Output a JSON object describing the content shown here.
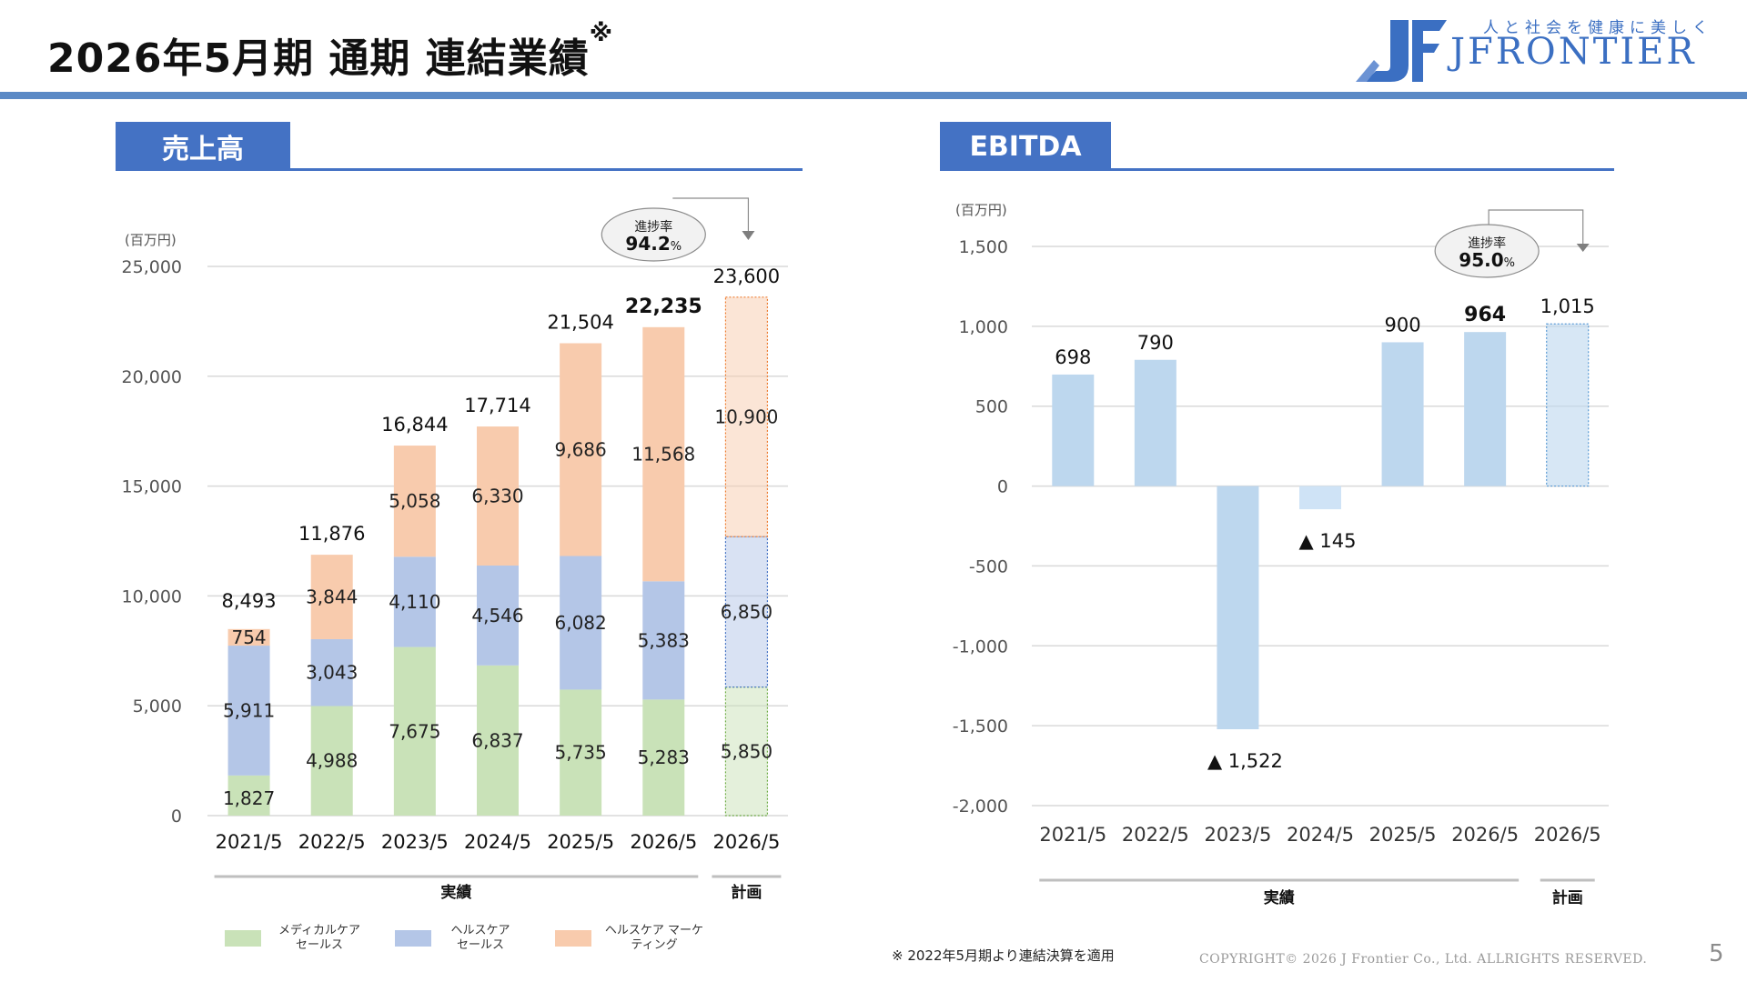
{
  "header": {
    "title": "2026年5月期 通期 連結業績",
    "title_mark": "※",
    "logo_tagline": "人と社会を健康に美しく",
    "logo_name": "JFRONTIER",
    "accent_color": "#4472c4"
  },
  "sales_section": {
    "tab_label": "売上高"
  },
  "ebitda_section": {
    "tab_label": "EBITDA"
  },
  "chart_data": [
    {
      "type": "bar",
      "stacked": true,
      "unit_label": "(百万円)",
      "categories": [
        "2021/5",
        "2022/5",
        "2023/5",
        "2024/5",
        "2025/5",
        "2026/5",
        "2026/5"
      ],
      "series": [
        {
          "name": "メディカルケア セールス",
          "values": [
            1827,
            4988,
            7675,
            6837,
            5735,
            5283,
            5850
          ],
          "color": "#c9e2b8"
        },
        {
          "name": "ヘルスケア セールス",
          "values": [
            5911,
            3043,
            4110,
            4546,
            6082,
            5383,
            6850
          ],
          "color": "#b4c6e7"
        },
        {
          "name": "ヘルスケア マーケティング",
          "values": [
            754,
            3844,
            5058,
            6330,
            9686,
            11568,
            10900
          ],
          "color": "#f8cbad"
        }
      ],
      "series_value_labels": [
        [
          "1,827",
          "4,988",
          "7,675",
          "6,837",
          "5,735",
          "5,283",
          "5,850"
        ],
        [
          "5,911",
          "3,043",
          "4,110",
          "4,546",
          "6,082",
          "5,383",
          "6,850"
        ],
        [
          "754",
          "3,844",
          "5,058",
          "6,330",
          "9,686",
          "11,568",
          "10,900"
        ]
      ],
      "totals": [
        8493,
        11876,
        16844,
        17714,
        21504,
        22235,
        23600
      ],
      "total_labels": [
        "8,493",
        "11,876",
        "16,844",
        "17,714",
        "21,504",
        "22,235",
        "23,600"
      ],
      "highlight_index": 5,
      "plan_index": 6,
      "ylim": [
        0,
        25000
      ],
      "yticks": [
        0,
        5000,
        10000,
        15000,
        20000,
        25000
      ],
      "ytick_labels": [
        "0",
        "5,000",
        "10,000",
        "15,000",
        "20,000",
        "25,000"
      ],
      "grid": true,
      "progress": {
        "label": "進捗率",
        "value": "94.2",
        "unit": "%"
      },
      "groups": [
        {
          "label": "実績"
        },
        {
          "label": "計画"
        }
      ],
      "legend_position": "bottom"
    },
    {
      "type": "bar",
      "unit_label": "(百万円)",
      "categories": [
        "2021/5",
        "2022/5",
        "2023/5",
        "2024/5",
        "2025/5",
        "2026/5",
        "2026/5"
      ],
      "values": [
        698,
        790,
        -1522,
        -145,
        900,
        964,
        1015
      ],
      "value_labels": [
        "698",
        "790",
        "▲ 1,522",
        "▲ 145",
        "900",
        "964",
        "1,015"
      ],
      "highlight_index": 5,
      "plan_index": 6,
      "ylim": [
        -2000,
        1500
      ],
      "yticks": [
        -2000,
        -1500,
        -1000,
        -500,
        0,
        500,
        1000,
        1500
      ],
      "ytick_labels": [
        "-2,000",
        "-1,500",
        "-1,000",
        "-500",
        "0",
        "500",
        "1,000",
        "1,500"
      ],
      "grid": true,
      "bar_color": "#bdd7ee",
      "progress": {
        "label": "進捗率",
        "value": "95.0",
        "unit": "%"
      },
      "groups": [
        {
          "label": "実績"
        },
        {
          "label": "計画"
        }
      ]
    }
  ],
  "footer": {
    "note": "※ 2022年5月期より連結決算を適用",
    "copyright": "COPYRIGHT© 2026 J Frontier Co., Ltd. ALLRIGHTS RESERVED.",
    "page_number": "5"
  }
}
